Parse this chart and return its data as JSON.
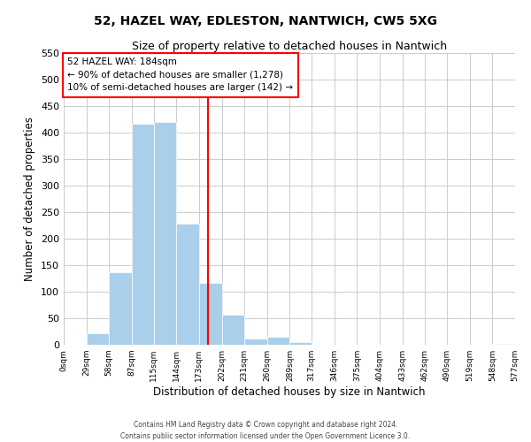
{
  "title": "52, HAZEL WAY, EDLESTON, NANTWICH, CW5 5XG",
  "subtitle": "Size of property relative to detached houses in Nantwich",
  "xlabel": "Distribution of detached houses by size in Nantwich",
  "ylabel": "Number of detached properties",
  "bin_edges": [
    0,
    29,
    58,
    87,
    115,
    144,
    173,
    202,
    231,
    260,
    289,
    317,
    346,
    375,
    404,
    433,
    462,
    490,
    519,
    548,
    577
  ],
  "bin_labels": [
    "0sqm",
    "29sqm",
    "58sqm",
    "87sqm",
    "115sqm",
    "144sqm",
    "173sqm",
    "202sqm",
    "231sqm",
    "260sqm",
    "289sqm",
    "317sqm",
    "346sqm",
    "375sqm",
    "404sqm",
    "433sqm",
    "462sqm",
    "490sqm",
    "519sqm",
    "548sqm",
    "577sqm"
  ],
  "counts": [
    0,
    22,
    137,
    416,
    420,
    228,
    117,
    57,
    12,
    15,
    5,
    0,
    0,
    0,
    0,
    0,
    0,
    0,
    0,
    1
  ],
  "bar_color": "#aacfea",
  "reference_line_x": 184,
  "reference_line_color": "red",
  "annotation_text_line1": "52 HAZEL WAY: 184sqm",
  "annotation_text_line2": "← 90% of detached houses are smaller (1,278)",
  "annotation_text_line3": "10% of semi-detached houses are larger (142) →",
  "annotation_box_edge_color": "red",
  "annotation_box_face_color": "white",
  "ylim": [
    0,
    550
  ],
  "yticks": [
    0,
    50,
    100,
    150,
    200,
    250,
    300,
    350,
    400,
    450,
    500,
    550
  ],
  "footer_line1": "Contains HM Land Registry data © Crown copyright and database right 2024.",
  "footer_line2": "Contains public sector information licensed under the Open Government Licence 3.0.",
  "background_color": "#ffffff",
  "grid_color": "#cccccc"
}
